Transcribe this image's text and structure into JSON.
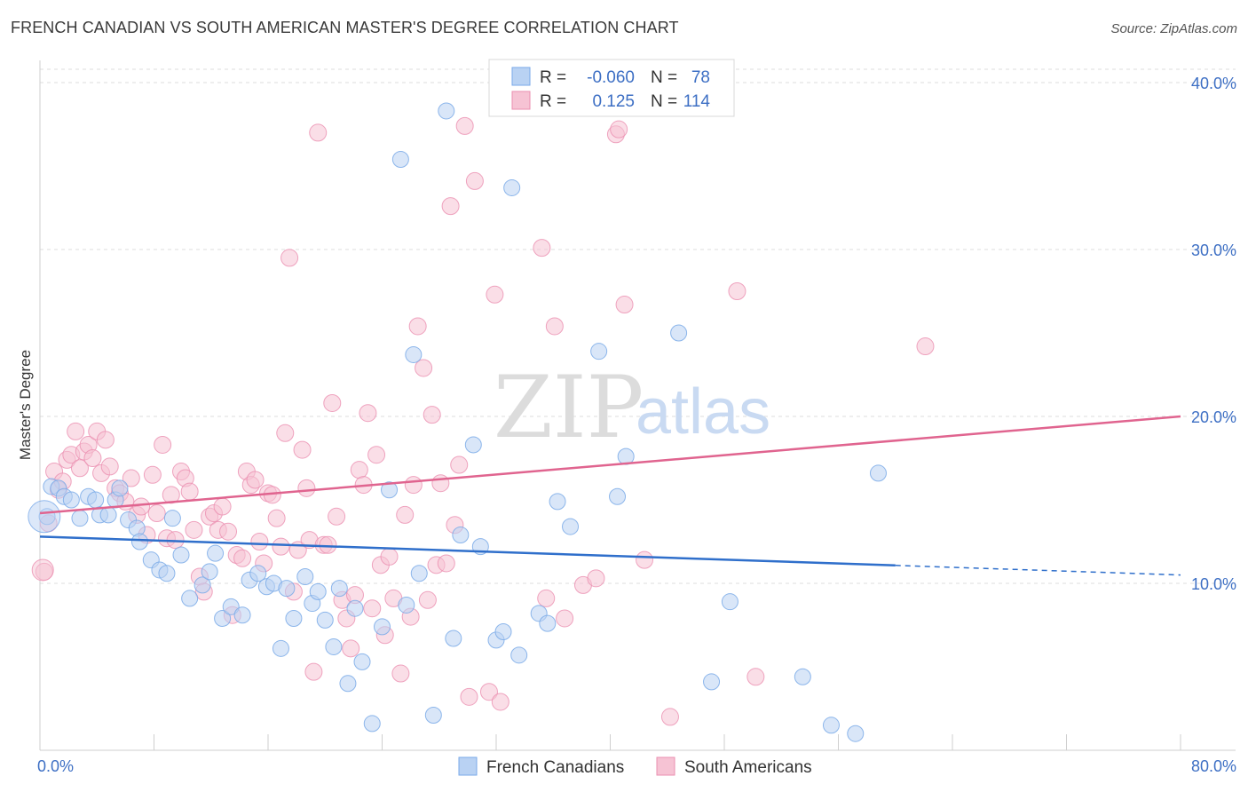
{
  "title": "FRENCH CANADIAN VS SOUTH AMERICAN MASTER'S DEGREE CORRELATION CHART",
  "source": "Source: ZipAtlas.com",
  "watermark": {
    "zip": "ZIP",
    "atlas": "atlas"
  },
  "legend": {
    "r_label": "R =",
    "n_label": "N =",
    "rows": [
      {
        "name": "French Canadians",
        "r": "-0.060",
        "n": "78",
        "color": "#7aaae8",
        "fill": "#b9d2f3"
      },
      {
        "name": "South Americans",
        "r": "0.125",
        "n": "114",
        "color": "#eb8fb0",
        "fill": "#f6c3d4"
      }
    ]
  },
  "colors": {
    "blue_line": "#2f6fcb",
    "pink_line": "#e0648f",
    "tick": "#3d6fc4",
    "grid": "#dddddd"
  },
  "chart_data": {
    "type": "scatter",
    "title": "FRENCH CANADIAN VS SOUTH AMERICAN MASTER'S DEGREE CORRELATION CHART",
    "xlabel": "",
    "ylabel": "Master's Degree",
    "xlim": [
      0,
      80
    ],
    "ylim": [
      0,
      40
    ],
    "x_tick_labels": [
      "0.0%",
      "80.0%"
    ],
    "y_ticks": [
      10,
      20,
      30,
      40
    ],
    "y_tick_labels": [
      "10.0%",
      "20.0%",
      "30.0%",
      "40.0%"
    ],
    "legend_position": "top-center",
    "series": [
      {
        "name": "French Canadians",
        "r": -0.06,
        "n": 78,
        "trend": {
          "x0": 0,
          "y0": 12.8,
          "x1": 80,
          "y1": 10.5,
          "solid_until_x": 60
        },
        "points": [
          [
            0.5,
            14
          ],
          [
            0.8,
            15.8
          ],
          [
            1.3,
            15.7
          ],
          [
            1.7,
            15.2
          ],
          [
            2.2,
            15
          ],
          [
            2.8,
            13.9
          ],
          [
            3.4,
            15.2
          ],
          [
            3.9,
            15
          ],
          [
            4.2,
            14.1
          ],
          [
            4.8,
            14.1
          ],
          [
            5.3,
            15
          ],
          [
            5.6,
            15.7
          ],
          [
            6.2,
            13.8
          ],
          [
            6.8,
            13.3
          ],
          [
            7,
            12.5
          ],
          [
            7.8,
            11.4
          ],
          [
            8.4,
            10.8
          ],
          [
            8.9,
            10.6
          ],
          [
            9.3,
            13.9
          ],
          [
            9.9,
            11.7
          ],
          [
            10.5,
            9.1
          ],
          [
            11.4,
            9.9
          ],
          [
            11.9,
            10.7
          ],
          [
            12.3,
            11.8
          ],
          [
            12.8,
            7.9
          ],
          [
            13.4,
            8.6
          ],
          [
            14.2,
            8.1
          ],
          [
            14.7,
            10.2
          ],
          [
            15.3,
            10.6
          ],
          [
            15.9,
            9.8
          ],
          [
            16.4,
            10
          ],
          [
            16.9,
            6.1
          ],
          [
            17.3,
            9.7
          ],
          [
            17.8,
            7.9
          ],
          [
            18.6,
            10.4
          ],
          [
            19.1,
            8.8
          ],
          [
            19.5,
            9.5
          ],
          [
            20,
            7.8
          ],
          [
            20.6,
            6.2
          ],
          [
            21,
            9.7
          ],
          [
            21.6,
            4
          ],
          [
            22.1,
            8.5
          ],
          [
            22.6,
            5.3
          ],
          [
            23.3,
            1.6
          ],
          [
            24,
            7.4
          ],
          [
            24.5,
            15.6
          ],
          [
            25.3,
            35.4
          ],
          [
            25.7,
            8.7
          ],
          [
            26.2,
            23.7
          ],
          [
            26.6,
            10.6
          ],
          [
            27.6,
            2.1
          ],
          [
            28.5,
            38.3
          ],
          [
            29,
            6.7
          ],
          [
            29.5,
            12.9
          ],
          [
            30.4,
            18.3
          ],
          [
            30.9,
            12.2
          ],
          [
            32,
            6.6
          ],
          [
            32.5,
            7.1
          ],
          [
            33.1,
            33.7
          ],
          [
            33.6,
            5.7
          ],
          [
            35,
            8.2
          ],
          [
            35.6,
            7.6
          ],
          [
            36.3,
            14.9
          ],
          [
            37.2,
            13.4
          ],
          [
            39.2,
            23.9
          ],
          [
            40.5,
            15.2
          ],
          [
            41.1,
            17.6
          ],
          [
            44.8,
            25
          ],
          [
            47.1,
            4.1
          ],
          [
            48.4,
            8.9
          ],
          [
            53.5,
            4.4
          ],
          [
            55.5,
            1.5
          ],
          [
            57.2,
            1
          ],
          [
            58.8,
            16.6
          ]
        ]
      },
      {
        "name": "South Americans",
        "r": 0.125,
        "n": 114,
        "trend": {
          "x0": 0,
          "y0": 14.2,
          "x1": 80,
          "y1": 20
        },
        "points": [
          [
            0.3,
            10.7
          ],
          [
            0.6,
            13.6
          ],
          [
            1,
            16.7
          ],
          [
            1.3,
            15.6
          ],
          [
            1.6,
            16.1
          ],
          [
            1.9,
            17.4
          ],
          [
            2.2,
            17.7
          ],
          [
            2.5,
            19.1
          ],
          [
            2.8,
            16.9
          ],
          [
            3.1,
            17.9
          ],
          [
            3.4,
            18.3
          ],
          [
            3.7,
            17.5
          ],
          [
            4,
            19.1
          ],
          [
            4.3,
            16.6
          ],
          [
            4.6,
            18.6
          ],
          [
            4.9,
            17
          ],
          [
            5.3,
            15.7
          ],
          [
            5.6,
            15.4
          ],
          [
            6,
            14.9
          ],
          [
            6.4,
            16.3
          ],
          [
            6.8,
            14.1
          ],
          [
            7.1,
            14.6
          ],
          [
            7.5,
            12.9
          ],
          [
            7.9,
            16.5
          ],
          [
            8.2,
            14.2
          ],
          [
            8.6,
            18.3
          ],
          [
            8.9,
            12.7
          ],
          [
            9.2,
            15.3
          ],
          [
            9.5,
            12.6
          ],
          [
            9.9,
            16.7
          ],
          [
            10.2,
            16.3
          ],
          [
            10.5,
            15.5
          ],
          [
            10.8,
            13.2
          ],
          [
            11.2,
            10.4
          ],
          [
            11.5,
            9.5
          ],
          [
            11.9,
            14
          ],
          [
            12.2,
            14.2
          ],
          [
            12.5,
            13.2
          ],
          [
            12.8,
            14.6
          ],
          [
            13.2,
            13.1
          ],
          [
            13.5,
            8.1
          ],
          [
            13.8,
            11.7
          ],
          [
            14.2,
            11.5
          ],
          [
            14.5,
            16.7
          ],
          [
            14.8,
            15.9
          ],
          [
            15.1,
            16.2
          ],
          [
            15.4,
            12.5
          ],
          [
            15.7,
            11.2
          ],
          [
            16,
            15.4
          ],
          [
            16.3,
            15.3
          ],
          [
            16.6,
            13.9
          ],
          [
            16.9,
            12.2
          ],
          [
            17.2,
            19
          ],
          [
            17.5,
            29.5
          ],
          [
            17.8,
            9.5
          ],
          [
            18.1,
            12
          ],
          [
            18.4,
            18
          ],
          [
            18.7,
            15.7
          ],
          [
            18.9,
            12.6
          ],
          [
            19.2,
            4.7
          ],
          [
            19.5,
            37
          ],
          [
            19.9,
            12.3
          ],
          [
            20.2,
            12.3
          ],
          [
            20.5,
            20.8
          ],
          [
            20.8,
            14
          ],
          [
            21.2,
            9
          ],
          [
            21.5,
            7.9
          ],
          [
            21.8,
            6.1
          ],
          [
            22.1,
            9.3
          ],
          [
            22.4,
            16.8
          ],
          [
            22.7,
            15.9
          ],
          [
            23,
            20.2
          ],
          [
            23.3,
            8.5
          ],
          [
            23.6,
            17.7
          ],
          [
            23.9,
            11.1
          ],
          [
            24.2,
            6.9
          ],
          [
            24.5,
            11.6
          ],
          [
            24.8,
            9.1
          ],
          [
            25.3,
            4.6
          ],
          [
            25.6,
            14.1
          ],
          [
            26,
            8
          ],
          [
            26.2,
            15.9
          ],
          [
            26.5,
            25.4
          ],
          [
            26.9,
            22.9
          ],
          [
            27.2,
            9
          ],
          [
            27.5,
            20.1
          ],
          [
            27.8,
            11.1
          ],
          [
            28.1,
            16
          ],
          [
            28.5,
            11.2
          ],
          [
            28.8,
            32.6
          ],
          [
            29.1,
            13.5
          ],
          [
            29.4,
            17.1
          ],
          [
            29.8,
            37.4
          ],
          [
            30.1,
            3.2
          ],
          [
            30.5,
            34.1
          ],
          [
            31.5,
            3.5
          ],
          [
            31.9,
            27.3
          ],
          [
            32.3,
            2.9
          ],
          [
            35.2,
            30.1
          ],
          [
            35.5,
            9.1
          ],
          [
            36.1,
            25.4
          ],
          [
            36.8,
            7.9
          ],
          [
            38.1,
            9.9
          ],
          [
            39,
            10.3
          ],
          [
            40.4,
            36.9
          ],
          [
            40.6,
            37.2
          ],
          [
            41,
            26.7
          ],
          [
            42.4,
            11.4
          ],
          [
            44.2,
            2
          ],
          [
            48.9,
            27.5
          ],
          [
            50.2,
            4.4
          ],
          [
            62.1,
            24.2
          ]
        ]
      }
    ]
  }
}
